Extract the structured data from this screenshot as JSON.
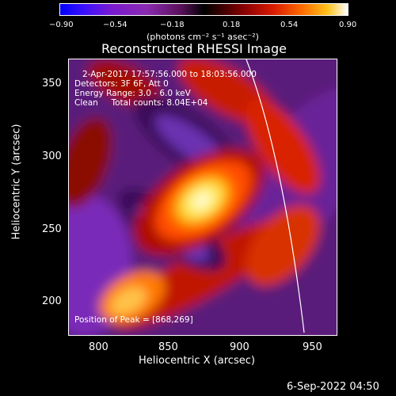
{
  "colorbar": {
    "ticks": [
      "−0.90",
      "−0.54",
      "−0.18",
      "0.18",
      "0.54",
      "0.90"
    ],
    "unit_label": "(photons cm⁻² s⁻¹ asec⁻²)"
  },
  "title": "Reconstructed RHESSI Image",
  "info": {
    "time_range": "2-Apr-2017 17:57:56.000 to 18:03:56.000",
    "detectors": "Detectors: 3F 6F, Att 0",
    "energy": "Energy Range: 3.0 - 6.0 keV",
    "clean": "Clean     Total counts: 8.04E+04",
    "peak": "Position of Peak = [868,269]"
  },
  "axes": {
    "xlabel": "Heliocentric X (arcsec)",
    "ylabel": "Heliocentric Y (arcsec)",
    "xticks": [
      "800",
      "850",
      "900",
      "950"
    ],
    "yticks": [
      "350",
      "300",
      "250",
      "200"
    ]
  },
  "footer_date": "6-Sep-2022 04:50"
}
